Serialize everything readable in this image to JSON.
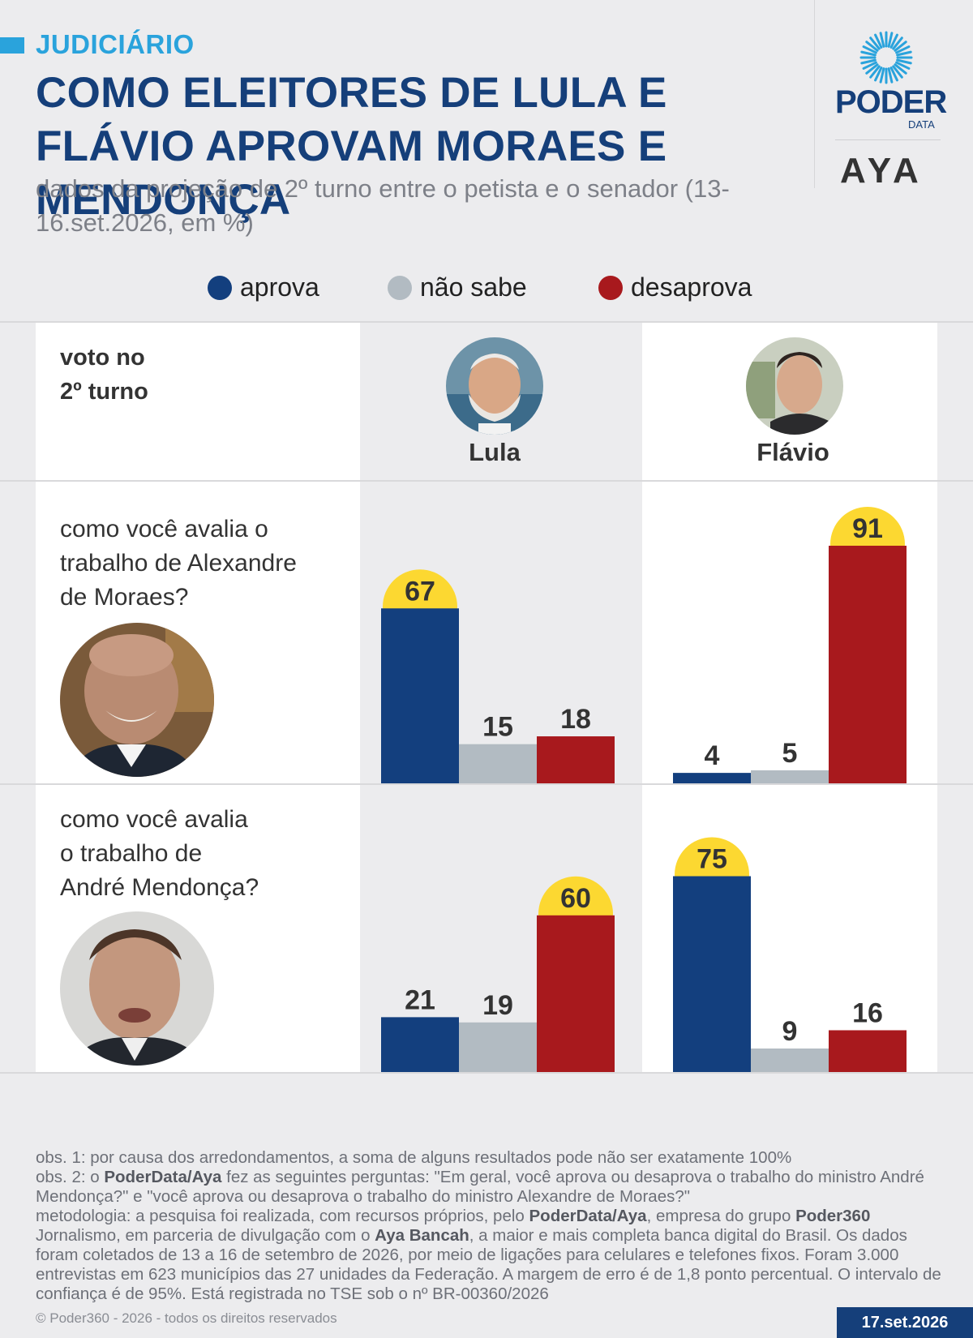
{
  "header": {
    "kicker": "JUDICIÁRIO",
    "title": "COMO ELEITORES DE LULA E FLÁVIO APROVAM MORAES E MENDONÇA",
    "subtitle": "dados da projeção de 2º turno entre o petista e o senador (13-16.set.2026, em %)"
  },
  "brand": {
    "poder": "PODER",
    "data": "DATA",
    "aya": "AYA"
  },
  "legend": {
    "items": [
      {
        "label": "aprova",
        "color": "#133f7e"
      },
      {
        "label": "não sabe",
        "color": "#b2bbc2"
      },
      {
        "label": "desaprova",
        "color": "#a8191d"
      }
    ]
  },
  "table": {
    "header_label_line1": "voto no",
    "header_label_line2": "2º turno",
    "candidates": [
      {
        "name": "Lula"
      },
      {
        "name": "Flávio"
      }
    ],
    "questions": [
      {
        "line1": "como você avalia o",
        "line2": "trabalho de Alexandre",
        "line3": "de Moraes?"
      },
      {
        "line1": "como você avalia",
        "line2": "o trabalho de",
        "line3": "André Mendonça?"
      }
    ]
  },
  "chart_data": {
    "type": "bar",
    "categories": [
      "aprova",
      "não sabe",
      "desaprova"
    ],
    "colors": [
      "#133f7e",
      "#b2bbc2",
      "#a8191d"
    ],
    "highlight_color": "#fcd831",
    "panels": [
      {
        "question": "Alexandre de Moraes",
        "candidate": "Lula",
        "values": [
          67,
          15,
          18
        ]
      },
      {
        "question": "Alexandre de Moraes",
        "candidate": "Flávio",
        "values": [
          4,
          5,
          91
        ]
      },
      {
        "question": "André Mendonça",
        "candidate": "Lula",
        "values": [
          21,
          19,
          60
        ]
      },
      {
        "question": "André Mendonça",
        "candidate": "Flávio",
        "values": [
          75,
          9,
          16
        ]
      }
    ]
  },
  "notes": {
    "obs1": "obs. 1: por causa dos arredondamentos, a soma de alguns resultados pode não ser exatamente 100%",
    "obs2_a": "obs. 2: o ",
    "obs2_b": "PoderData/Aya",
    "obs2_c": " fez as seguintes perguntas: \"Em geral, você aprova ou desaprova o trabalho do ministro André Mendonça?\" e \"você aprova ou desaprova o trabalho do ministro Alexandre de Moraes?\"",
    "met_a": "metodologia: a pesquisa foi realizada, com recursos próprios, pelo ",
    "met_b": "PoderData/Aya",
    "met_c": ", empresa do grupo ",
    "met_d": "Poder360",
    "met_e": " Jornalismo, em parceria de divulgação com o ",
    "met_f": "Aya Bancah",
    "met_g": ", a maior e mais completa banca digital do Brasil. Os dados foram coletados de 13 a 16 de setembro de 2026, por meio de ligações para celulares e telefones fixos. Foram 3.000 entrevistas em 623 municípios das 27 unidades da Federação. A margem de erro é de 1,8 ponto percentual. O intervalo de confiança é de 95%. Está registrada no TSE sob o nº BR-00360/2026",
    "copyright": "© Poder360 - 2026 - todos os direitos reservados",
    "date": "17.set.2026"
  }
}
